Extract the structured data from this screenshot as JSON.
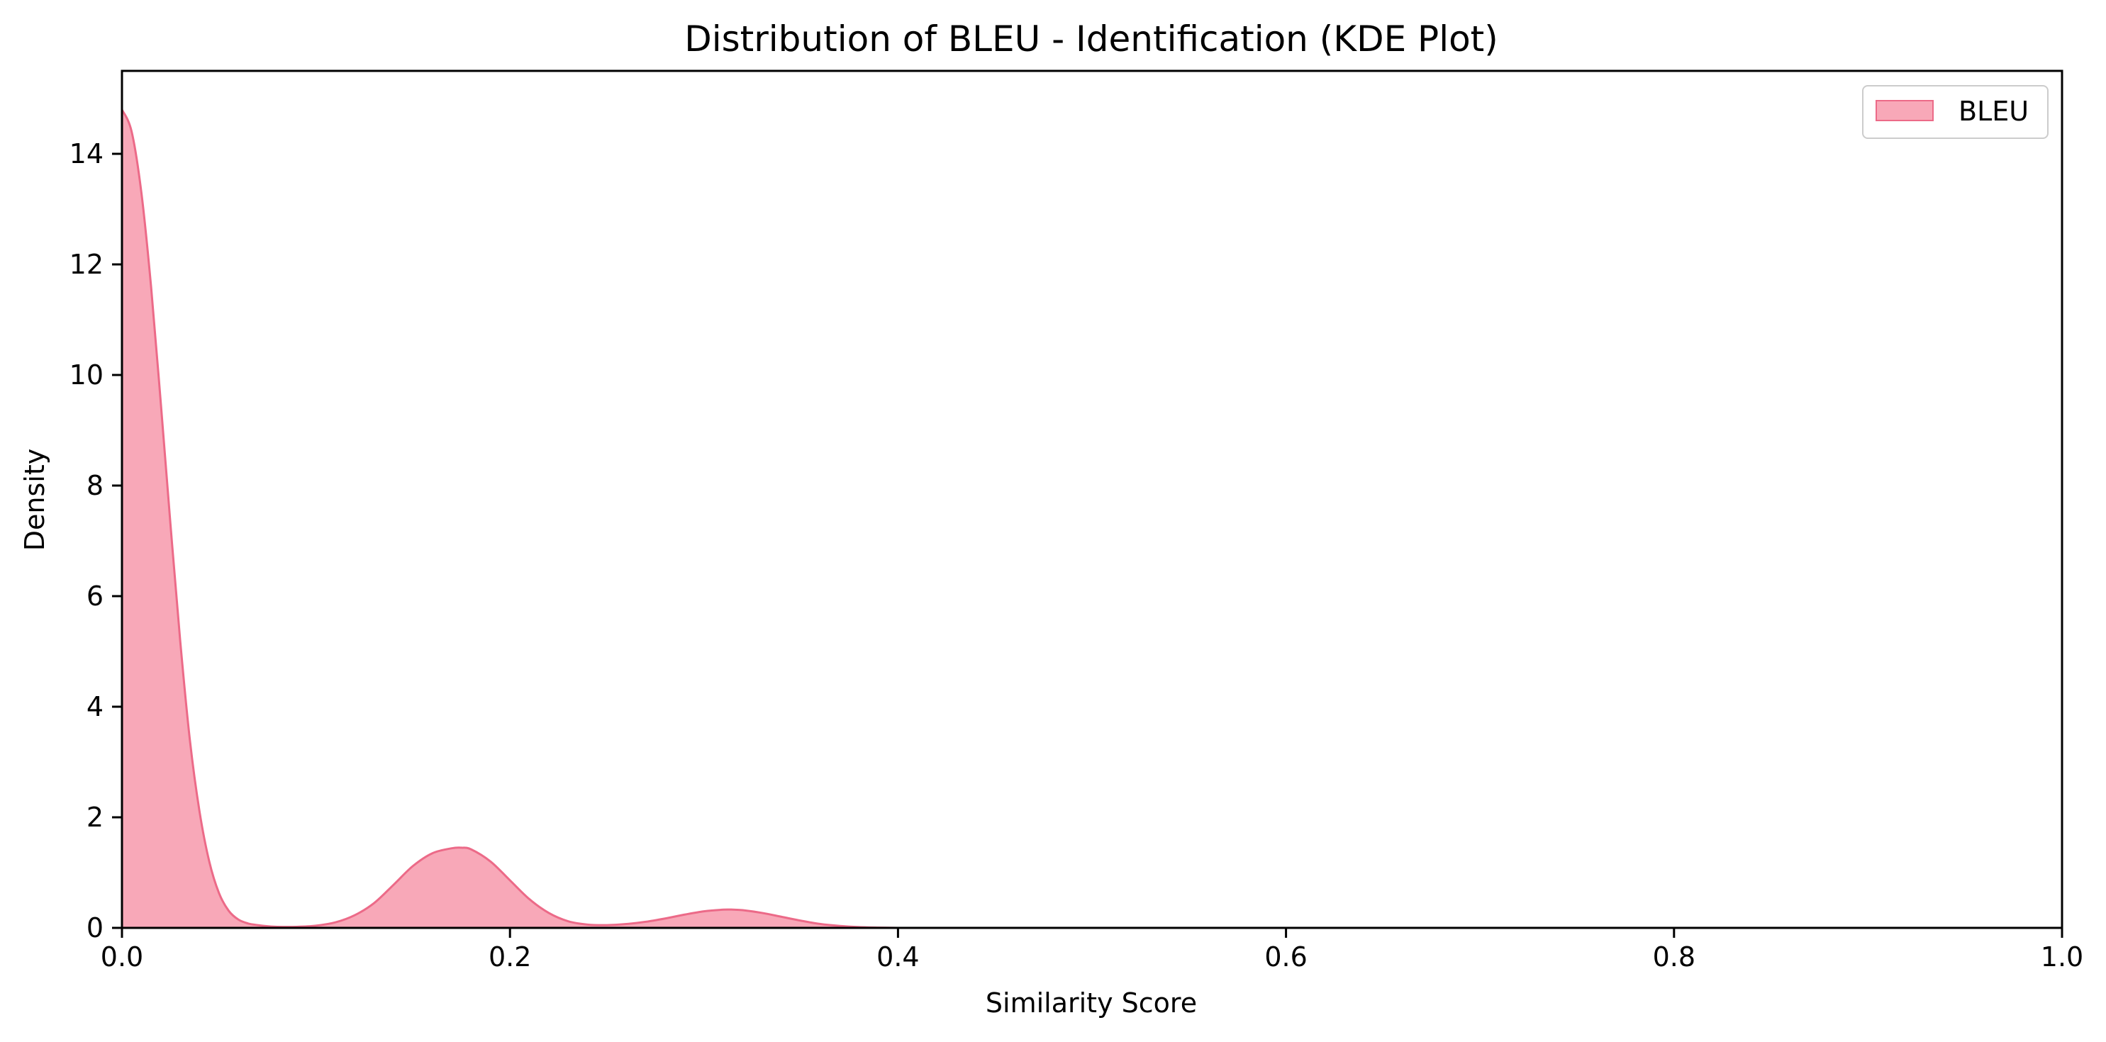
{
  "chart_data": {
    "type": "area",
    "title": "Distribution of BLEU - Identification (KDE Plot)",
    "xlabel": "Similarity Score",
    "ylabel": "Density",
    "xlim": [
      0,
      1.0
    ],
    "ylim": [
      0,
      15.5
    ],
    "xticks": [
      0.0,
      0.2,
      0.4,
      0.6,
      0.8,
      1.0
    ],
    "xtick_labels": [
      "0.0",
      "0.2",
      "0.4",
      "0.6",
      "0.8",
      "1.0"
    ],
    "yticks": [
      0,
      2,
      4,
      6,
      8,
      10,
      12,
      14
    ],
    "ytick_labels": [
      "0",
      "2",
      "4",
      "6",
      "8",
      "10",
      "12",
      "14"
    ],
    "grid": false,
    "legend_position": "top-right",
    "series": [
      {
        "name": "BLEU",
        "fill_color": "#f8a8b8",
        "line_color": "#ec6a88",
        "x": [
          0.0,
          0.005,
          0.01,
          0.015,
          0.02,
          0.025,
          0.03,
          0.035,
          0.04,
          0.045,
          0.05,
          0.055,
          0.06,
          0.065,
          0.07,
          0.075,
          0.08,
          0.09,
          0.1,
          0.11,
          0.12,
          0.13,
          0.14,
          0.15,
          0.16,
          0.17,
          0.175,
          0.18,
          0.19,
          0.2,
          0.21,
          0.22,
          0.23,
          0.24,
          0.25,
          0.26,
          0.27,
          0.28,
          0.29,
          0.3,
          0.31,
          0.315,
          0.32,
          0.33,
          0.34,
          0.35,
          0.36,
          0.37,
          0.38,
          0.39,
          0.4
        ],
        "y": [
          14.8,
          14.4,
          13.3,
          11.6,
          9.5,
          7.3,
          5.2,
          3.4,
          2.1,
          1.2,
          0.63,
          0.31,
          0.15,
          0.08,
          0.05,
          0.03,
          0.02,
          0.02,
          0.04,
          0.1,
          0.23,
          0.45,
          0.78,
          1.12,
          1.35,
          1.44,
          1.45,
          1.42,
          1.2,
          0.86,
          0.52,
          0.27,
          0.12,
          0.06,
          0.05,
          0.07,
          0.11,
          0.17,
          0.24,
          0.3,
          0.33,
          0.33,
          0.32,
          0.27,
          0.2,
          0.13,
          0.07,
          0.035,
          0.015,
          0.005,
          0.0
        ]
      }
    ]
  }
}
